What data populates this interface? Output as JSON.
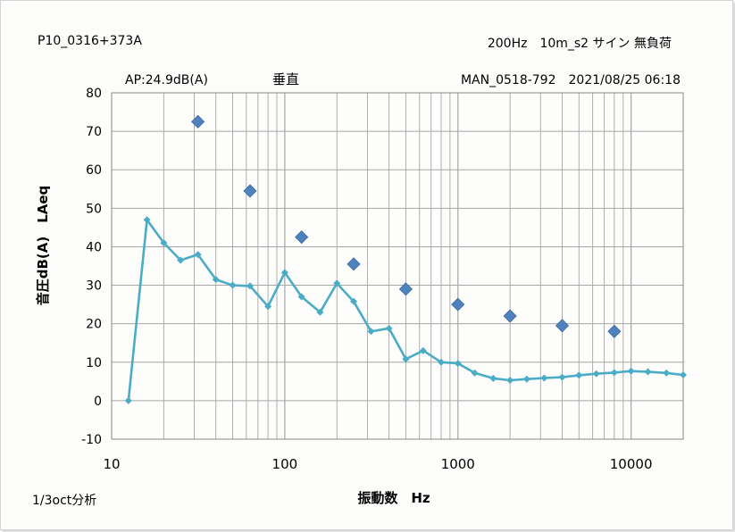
{
  "chart_data": {
    "type": "line",
    "header": {
      "top_left": "P10_0316+373A",
      "top_right": "200Hz　10m_s2 サイン 無負荷",
      "sub_left": "AP:24.9dB(A)",
      "sub_mid": "垂直",
      "sub_right": "MAN_0518-792　2021/08/25 06:18"
    },
    "footer_left": "1/3oct分析",
    "xlabel": "振動数　Hz",
    "ylabel": "音圧dB(A)　LAeq",
    "x_scale": "log",
    "xlim": [
      10,
      20000
    ],
    "ylim": [
      -10,
      80
    ],
    "x_ticks": [
      10,
      100,
      1000,
      10000
    ],
    "x_tick_labels": [
      "10",
      "100",
      "1000",
      "10000"
    ],
    "y_ticks": [
      -10,
      0,
      10,
      20,
      30,
      40,
      50,
      60,
      70,
      80
    ],
    "y_tick_labels": [
      "-10",
      "0",
      "10",
      "20",
      "30",
      "40",
      "50",
      "60",
      "70",
      "80"
    ],
    "grid": true,
    "series": [
      {
        "marker": "small-diamond-line",
        "color": "#4bacc6",
        "x": [
          12.5,
          16,
          20,
          25,
          31.5,
          40,
          50,
          63,
          80,
          100,
          125,
          160,
          200,
          250,
          315,
          400,
          500,
          630,
          800,
          1000,
          1250,
          1600,
          2000,
          2500,
          3150,
          4000,
          5000,
          6300,
          8000,
          10000,
          12500,
          16000,
          20000
        ],
        "y": [
          0,
          47,
          41,
          36.5,
          38,
          31.5,
          30,
          29.8,
          24.5,
          33.3,
          27,
          23,
          30.5,
          25.8,
          18,
          18.8,
          10.8,
          13,
          10,
          9.7,
          7.2,
          5.8,
          5.3,
          5.6,
          5.9,
          6.1,
          6.6,
          7,
          7.3,
          7.7,
          7.5,
          7.2,
          6.7
        ]
      },
      {
        "marker": "large-diamond",
        "color": "#4f81bd",
        "x": [
          31.5,
          63,
          125,
          250,
          500,
          1000,
          2000,
          4000,
          8000
        ],
        "y": [
          72.5,
          54.5,
          42.5,
          35.5,
          29,
          25,
          22,
          19.5,
          18
        ]
      }
    ]
  }
}
